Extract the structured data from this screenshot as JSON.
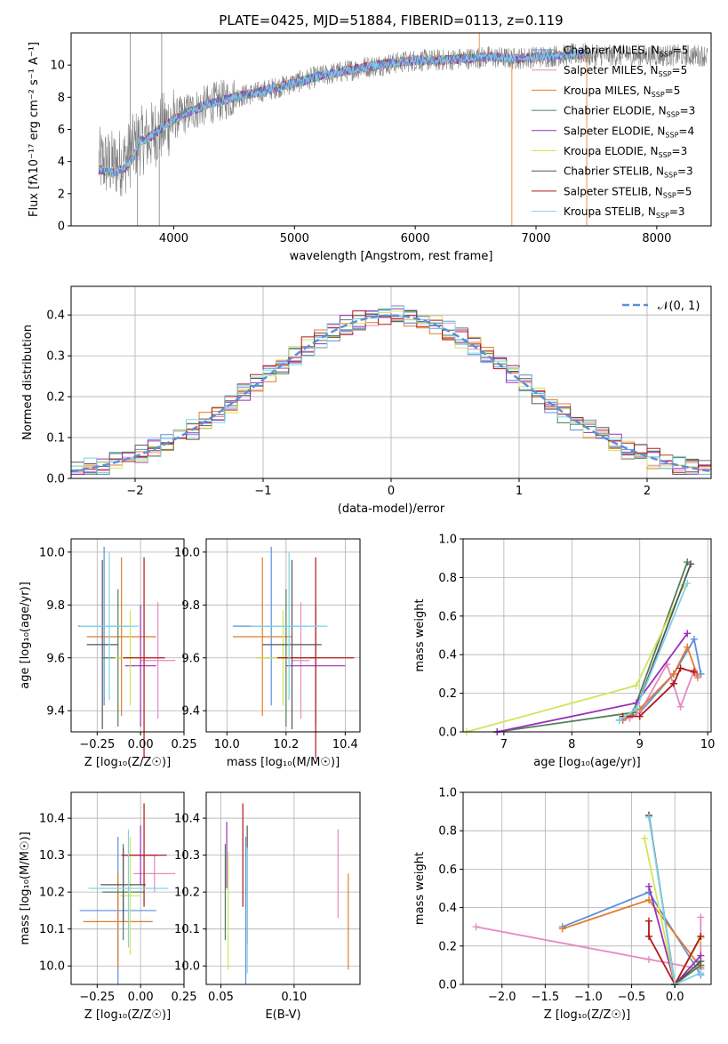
{
  "colors": {
    "chabrier_miles": "#5b8fdc",
    "salpeter_miles": "#e58ac0",
    "kroupa_miles": "#e27c2b",
    "chabrier_elodie": "#4f7f5a",
    "salpeter_elodie": "#9c2fb8",
    "kroupa_elodie": "#d4e35a",
    "chabrier_stelib": "#555555",
    "salpeter_stelib": "#b01818",
    "kroupa_stelib": "#7fd3e6",
    "obs": "#808080",
    "grid": "#b0b0b0",
    "normal": "#5b8fdc"
  },
  "chart_data": [
    {
      "id": "spectrum",
      "type": "line",
      "title": "PLATE=0425, MJD=51884, FIBERID=0113, z=0.119",
      "xlabel": "wavelength [Angstrom, rest frame]",
      "ylabel": "Flux [fλ10⁻¹⁷ erg cm⁻² s⁻¹ A⁻¹]",
      "xlim": [
        3150,
        8450
      ],
      "ylim": [
        0,
        12
      ],
      "xticks": [
        "4000",
        "5000",
        "6000",
        "7000",
        "8000"
      ],
      "yticks": [
        "0",
        "2",
        "4",
        "6",
        "8",
        "10"
      ],
      "grid": false,
      "legend_position": "upper right",
      "legend": [
        {
          "name": "Chabrier MILES, N",
          "sub": "SSP",
          "suffix": "=5",
          "key": "chabrier_miles"
        },
        {
          "name": "Salpeter MILES, N",
          "sub": "SSP",
          "suffix": "=5",
          "key": "salpeter_miles"
        },
        {
          "name": "Kroupa MILES, N",
          "sub": "SSP",
          "suffix": "=5",
          "key": "kroupa_miles"
        },
        {
          "name": "Chabrier ELODIE, N",
          "sub": "SSP",
          "suffix": "=3",
          "key": "chabrier_elodie"
        },
        {
          "name": "Salpeter ELODIE, N",
          "sub": "SSP",
          "suffix": "=4",
          "key": "salpeter_elodie"
        },
        {
          "name": "Kroupa ELODIE, N",
          "sub": "SSP",
          "suffix": "=3",
          "key": "kroupa_elodie"
        },
        {
          "name": "Chabrier STELIB, N",
          "sub": "SSP",
          "suffix": "=3",
          "key": "chabrier_stelib"
        },
        {
          "name": "Salpeter STELIB, N",
          "sub": "SSP",
          "suffix": "=5",
          "key": "salpeter_stelib"
        },
        {
          "name": "Kroupa STELIB, N",
          "sub": "SSP",
          "suffix": "=3",
          "key": "kroupa_stelib"
        }
      ],
      "model_envelope": {
        "x": [
          3380,
          3500,
          3600,
          3700,
          3800,
          3900,
          4000,
          4100,
          4200,
          4300,
          4500,
          4700,
          4900,
          5000,
          5200,
          5400,
          5600,
          5800,
          6000,
          6200,
          6400,
          6600,
          6800,
          7000,
          7200,
          7420
        ],
        "y": [
          4.0,
          3.8,
          4.1,
          5.2,
          5.5,
          6.1,
          6.6,
          7.0,
          7.3,
          7.6,
          8.0,
          8.3,
          8.7,
          8.9,
          9.3,
          9.6,
          9.9,
          10.1,
          10.3,
          10.3,
          10.4,
          10.5,
          10.4,
          10.5,
          10.6,
          10.7
        ]
      }
    },
    {
      "id": "residual_histogram",
      "type": "line",
      "xlabel": "(data-model)/error",
      "ylabel": "Normed distribution",
      "xlim": [
        -2.5,
        2.5
      ],
      "ylim": [
        0,
        0.47
      ],
      "xticks": [
        "−2",
        "−1",
        "0",
        "1",
        "2"
      ],
      "yticks": [
        "0.0",
        "0.1",
        "0.2",
        "0.3",
        "0.4"
      ],
      "grid": true,
      "legend_position": "upper right",
      "legend_label": "𝒩(0, 1)",
      "bin_width": 0.1
    },
    {
      "id": "age_vs_Z",
      "type": "scatter",
      "xlabel": "Z [log₁₀(Z/Z☉)]",
      "ylabel": "age  [log₁₀(age/yr)]",
      "xlim": [
        -0.4,
        0.25
      ],
      "ylim": [
        9.32,
        10.05
      ],
      "xticks": [
        "−0.25",
        "0.00",
        "0.25"
      ],
      "yticks": [
        "9.4",
        "9.6",
        "9.8",
        "10.0"
      ],
      "grid": true,
      "points": [
        {
          "key": "chabrier_miles",
          "x": -0.21,
          "xerr": 0.15,
          "y": 9.72,
          "yerr": 0.3
        },
        {
          "key": "salpeter_miles",
          "x": 0.1,
          "xerr": 0.1,
          "y": 9.59,
          "yerr": 0.22
        },
        {
          "key": "kroupa_miles",
          "x": -0.11,
          "xerr": 0.2,
          "y": 9.68,
          "yerr": 0.3
        },
        {
          "key": "chabrier_elodie",
          "x": -0.13,
          "xerr": 0.09,
          "y": 9.6,
          "yerr": 0.26
        },
        {
          "key": "salpeter_elodie",
          "x": 0.0,
          "xerr": 0.09,
          "y": 9.57,
          "yerr": 0.23
        },
        {
          "key": "kroupa_elodie",
          "x": -0.06,
          "xerr": 0.09,
          "y": 9.6,
          "yerr": 0.18
        },
        {
          "key": "chabrier_stelib",
          "x": -0.22,
          "xerr": 0.09,
          "y": 9.65,
          "yerr": 0.32
        },
        {
          "key": "salpeter_stelib",
          "x": 0.02,
          "xerr": 0.12,
          "y": 9.6,
          "yerr": 0.38
        },
        {
          "key": "kroupa_stelib",
          "x": -0.18,
          "xerr": 0.17,
          "y": 9.72,
          "yerr": 0.28
        }
      ]
    },
    {
      "id": "age_vs_mass",
      "type": "scatter",
      "xlabel": "mass [log₁₀(M/M☉)]",
      "xlim": [
        9.93,
        10.45
      ],
      "ylim": [
        9.32,
        10.05
      ],
      "xticks": [
        "10.0",
        "10.2",
        "10.4"
      ],
      "yticks": [
        "9.4",
        "9.6",
        "9.8",
        "10.0"
      ],
      "grid": true,
      "points": [
        {
          "key": "chabrier_miles",
          "x": 10.15,
          "xerr": 0.13,
          "y": 9.72,
          "yerr": 0.3
        },
        {
          "key": "salpeter_miles",
          "x": 10.25,
          "xerr": 0.03,
          "y": 9.59,
          "yerr": 0.22
        },
        {
          "key": "kroupa_miles",
          "x": 10.12,
          "xerr": 0.1,
          "y": 9.68,
          "yerr": 0.3
        },
        {
          "key": "chabrier_elodie",
          "x": 10.2,
          "xerr": 0.1,
          "y": 9.6,
          "yerr": 0.26
        },
        {
          "key": "salpeter_elodie",
          "x": 10.3,
          "xerr": 0.1,
          "y": 9.57,
          "yerr": 0.23
        },
        {
          "key": "kroupa_elodie",
          "x": 10.19,
          "xerr": 0.09,
          "y": 9.6,
          "yerr": 0.18
        },
        {
          "key": "chabrier_stelib",
          "x": 10.22,
          "xerr": 0.1,
          "y": 9.65,
          "yerr": 0.32
        },
        {
          "key": "salpeter_stelib",
          "x": 10.3,
          "xerr": 0.13,
          "y": 9.6,
          "yerr": 0.38
        },
        {
          "key": "kroupa_stelib",
          "x": 10.21,
          "xerr": 0.13,
          "y": 9.72,
          "yerr": 0.28
        }
      ]
    },
    {
      "id": "weight_vs_age",
      "type": "line",
      "xlabel": "age  [log₁₀(age/yr)]",
      "ylabel": "mass weight",
      "xlim": [
        6.4,
        10.05
      ],
      "ylim": [
        0,
        1
      ],
      "xticks": [
        "7",
        "8",
        "9",
        "10"
      ],
      "yticks": [
        "0.0",
        "0.2",
        "0.4",
        "0.6",
        "0.8",
        "1.0"
      ],
      "grid": true,
      "series": [
        {
          "key": "chabrier_miles",
          "x": [
            8.75,
            9.0,
            9.5,
            9.8,
            9.9
          ],
          "y": [
            0.06,
            0.1,
            0.3,
            0.48,
            0.3
          ]
        },
        {
          "key": "salpeter_miles",
          "x": [
            8.85,
            9.0,
            9.4,
            9.6,
            9.8,
            9.85
          ],
          "y": [
            0.07,
            0.1,
            0.35,
            0.13,
            0.32,
            0.28
          ]
        },
        {
          "key": "kroupa_miles",
          "x": [
            8.75,
            9.0,
            9.5,
            9.7,
            9.85
          ],
          "y": [
            0.06,
            0.12,
            0.3,
            0.44,
            0.29
          ]
        },
        {
          "key": "chabrier_elodie",
          "x": [
            6.9,
            8.9,
            9.7
          ],
          "y": [
            0.0,
            0.1,
            0.88
          ]
        },
        {
          "key": "salpeter_elodie",
          "x": [
            6.9,
            8.95,
            9.7
          ],
          "y": [
            0.0,
            0.15,
            0.51
          ]
        },
        {
          "key": "kroupa_elodie",
          "x": [
            6.45,
            8.95,
            9.65
          ],
          "y": [
            0.0,
            0.24,
            0.76
          ]
        },
        {
          "key": "chabrier_stelib",
          "x": [
            8.7,
            8.95,
            9.75
          ],
          "y": [
            0.06,
            0.12,
            0.87
          ]
        },
        {
          "key": "salpeter_stelib",
          "x": [
            8.75,
            9.0,
            9.5,
            9.6,
            9.8
          ],
          "y": [
            0.08,
            0.08,
            0.25,
            0.33,
            0.31
          ]
        },
        {
          "key": "kroupa_stelib",
          "x": [
            8.7,
            8.95,
            9.7
          ],
          "y": [
            0.06,
            0.12,
            0.77
          ]
        }
      ]
    },
    {
      "id": "mass_vs_Z",
      "type": "scatter",
      "xlabel": "Z [log₁₀(Z/Z☉)]",
      "ylabel": "mass [log₁₀(M/M☉)]",
      "xlim": [
        -0.4,
        0.25
      ],
      "ylim": [
        9.95,
        10.47
      ],
      "xticks": [
        "−0.25",
        "0.00",
        "0.25"
      ],
      "yticks": [
        "10.0",
        "10.1",
        "10.2",
        "10.3",
        "10.4"
      ],
      "grid": true,
      "points": [
        {
          "key": "chabrier_miles",
          "x": -0.13,
          "xerr": 0.22,
          "y": 10.15,
          "yerr": 0.2
        },
        {
          "key": "salpeter_miles",
          "x": 0.08,
          "xerr": 0.12,
          "y": 10.25,
          "yerr": 0.05
        },
        {
          "key": "kroupa_miles",
          "x": -0.13,
          "xerr": 0.2,
          "y": 10.12,
          "yerr": 0.13
        },
        {
          "key": "chabrier_elodie",
          "x": -0.1,
          "xerr": 0.12,
          "y": 10.2,
          "yerr": 0.13
        },
        {
          "key": "salpeter_elodie",
          "x": 0.0,
          "xerr": 0.1,
          "y": 10.3,
          "yerr": 0.08
        },
        {
          "key": "kroupa_elodie",
          "x": -0.06,
          "xerr": 0.06,
          "y": 10.19,
          "yerr": 0.16
        },
        {
          "key": "chabrier_stelib",
          "x": -0.1,
          "xerr": 0.13,
          "y": 10.22,
          "yerr": 0.1
        },
        {
          "key": "salpeter_stelib",
          "x": 0.02,
          "xerr": 0.13,
          "y": 10.3,
          "yerr": 0.14
        },
        {
          "key": "kroupa_stelib",
          "x": -0.07,
          "xerr": 0.23,
          "y": 10.21,
          "yerr": 0.16
        }
      ]
    },
    {
      "id": "mass_vs_ebv",
      "type": "scatter",
      "xlabel": "E(B-V)",
      "xlim": [
        0.04,
        0.145
      ],
      "ylim": [
        9.95,
        10.47
      ],
      "xticks": [
        "0.05",
        "0.10"
      ],
      "yticks": [
        "10.0",
        "10.1",
        "10.2",
        "10.3",
        "10.4"
      ],
      "grid": true,
      "points": [
        {
          "key": "chabrier_miles",
          "x": 0.067,
          "y": 10.15,
          "yerr": 0.2
        },
        {
          "key": "salpeter_miles",
          "x": 0.13,
          "y": 10.25,
          "yerr": 0.12
        },
        {
          "key": "kroupa_miles",
          "x": 0.137,
          "y": 10.12,
          "yerr": 0.13
        },
        {
          "key": "chabrier_elodie",
          "x": 0.053,
          "y": 10.2,
          "yerr": 0.13
        },
        {
          "key": "salpeter_elodie",
          "x": 0.054,
          "y": 10.3,
          "yerr": 0.09
        },
        {
          "key": "kroupa_elodie",
          "x": 0.055,
          "y": 10.15,
          "yerr": 0.16
        },
        {
          "key": "chabrier_stelib",
          "x": 0.068,
          "y": 10.22,
          "yerr": 0.16
        },
        {
          "key": "salpeter_stelib",
          "x": 0.065,
          "y": 10.3,
          "yerr": 0.14
        },
        {
          "key": "kroupa_stelib",
          "x": 0.068,
          "y": 10.15,
          "yerr": 0.17
        }
      ]
    },
    {
      "id": "weight_vs_Z",
      "type": "line",
      "xlabel": "Z [log₁₀(Z/Z☉)]",
      "ylabel": "mass weight",
      "xlim": [
        -2.45,
        0.42
      ],
      "ylim": [
        0,
        1
      ],
      "xticks": [
        "−2.0",
        "−1.5",
        "−1.0",
        "−0.5",
        "0.0"
      ],
      "yticks": [
        "0.0",
        "0.2",
        "0.4",
        "0.6",
        "0.8",
        "1.0"
      ],
      "grid": true,
      "series": [
        {
          "key": "chabrier_miles",
          "x": [
            -1.3,
            -0.3,
            0.3
          ],
          "y": [
            0.3,
            0.48,
            0.05
          ]
        },
        {
          "key": "salpeter_miles",
          "x": [
            -2.3,
            -0.3,
            0.3,
            0.3
          ],
          "y": [
            0.3,
            0.13,
            0.08,
            0.35
          ]
        },
        {
          "key": "kroupa_miles",
          "x": [
            -1.3,
            -0.3,
            0.3
          ],
          "y": [
            0.29,
            0.44,
            0.09
          ]
        },
        {
          "key": "chabrier_elodie",
          "x": [
            -0.3,
            0.0,
            0.3
          ],
          "y": [
            0.88,
            0.0,
            0.1
          ]
        },
        {
          "key": "salpeter_elodie",
          "x": [
            -0.3,
            0.0,
            0.3
          ],
          "y": [
            0.51,
            0.0,
            0.15
          ]
        },
        {
          "key": "kroupa_elodie",
          "x": [
            -0.35,
            0.0,
            0.3
          ],
          "y": [
            0.76,
            0.0,
            0.24
          ]
        },
        {
          "key": "chabrier_stelib",
          "x": [
            -0.3,
            0.0,
            0.3
          ],
          "y": [
            0.88,
            0.0,
            0.12
          ]
        },
        {
          "key": "salpeter_stelib",
          "x": [
            -0.3,
            -0.3,
            0.0,
            0.3
          ],
          "y": [
            0.33,
            0.25,
            0.0,
            0.25
          ]
        },
        {
          "key": "kroupa_stelib",
          "x": [
            -0.3,
            0.0,
            0.3
          ],
          "y": [
            0.87,
            0.0,
            0.06
          ]
        }
      ]
    }
  ]
}
